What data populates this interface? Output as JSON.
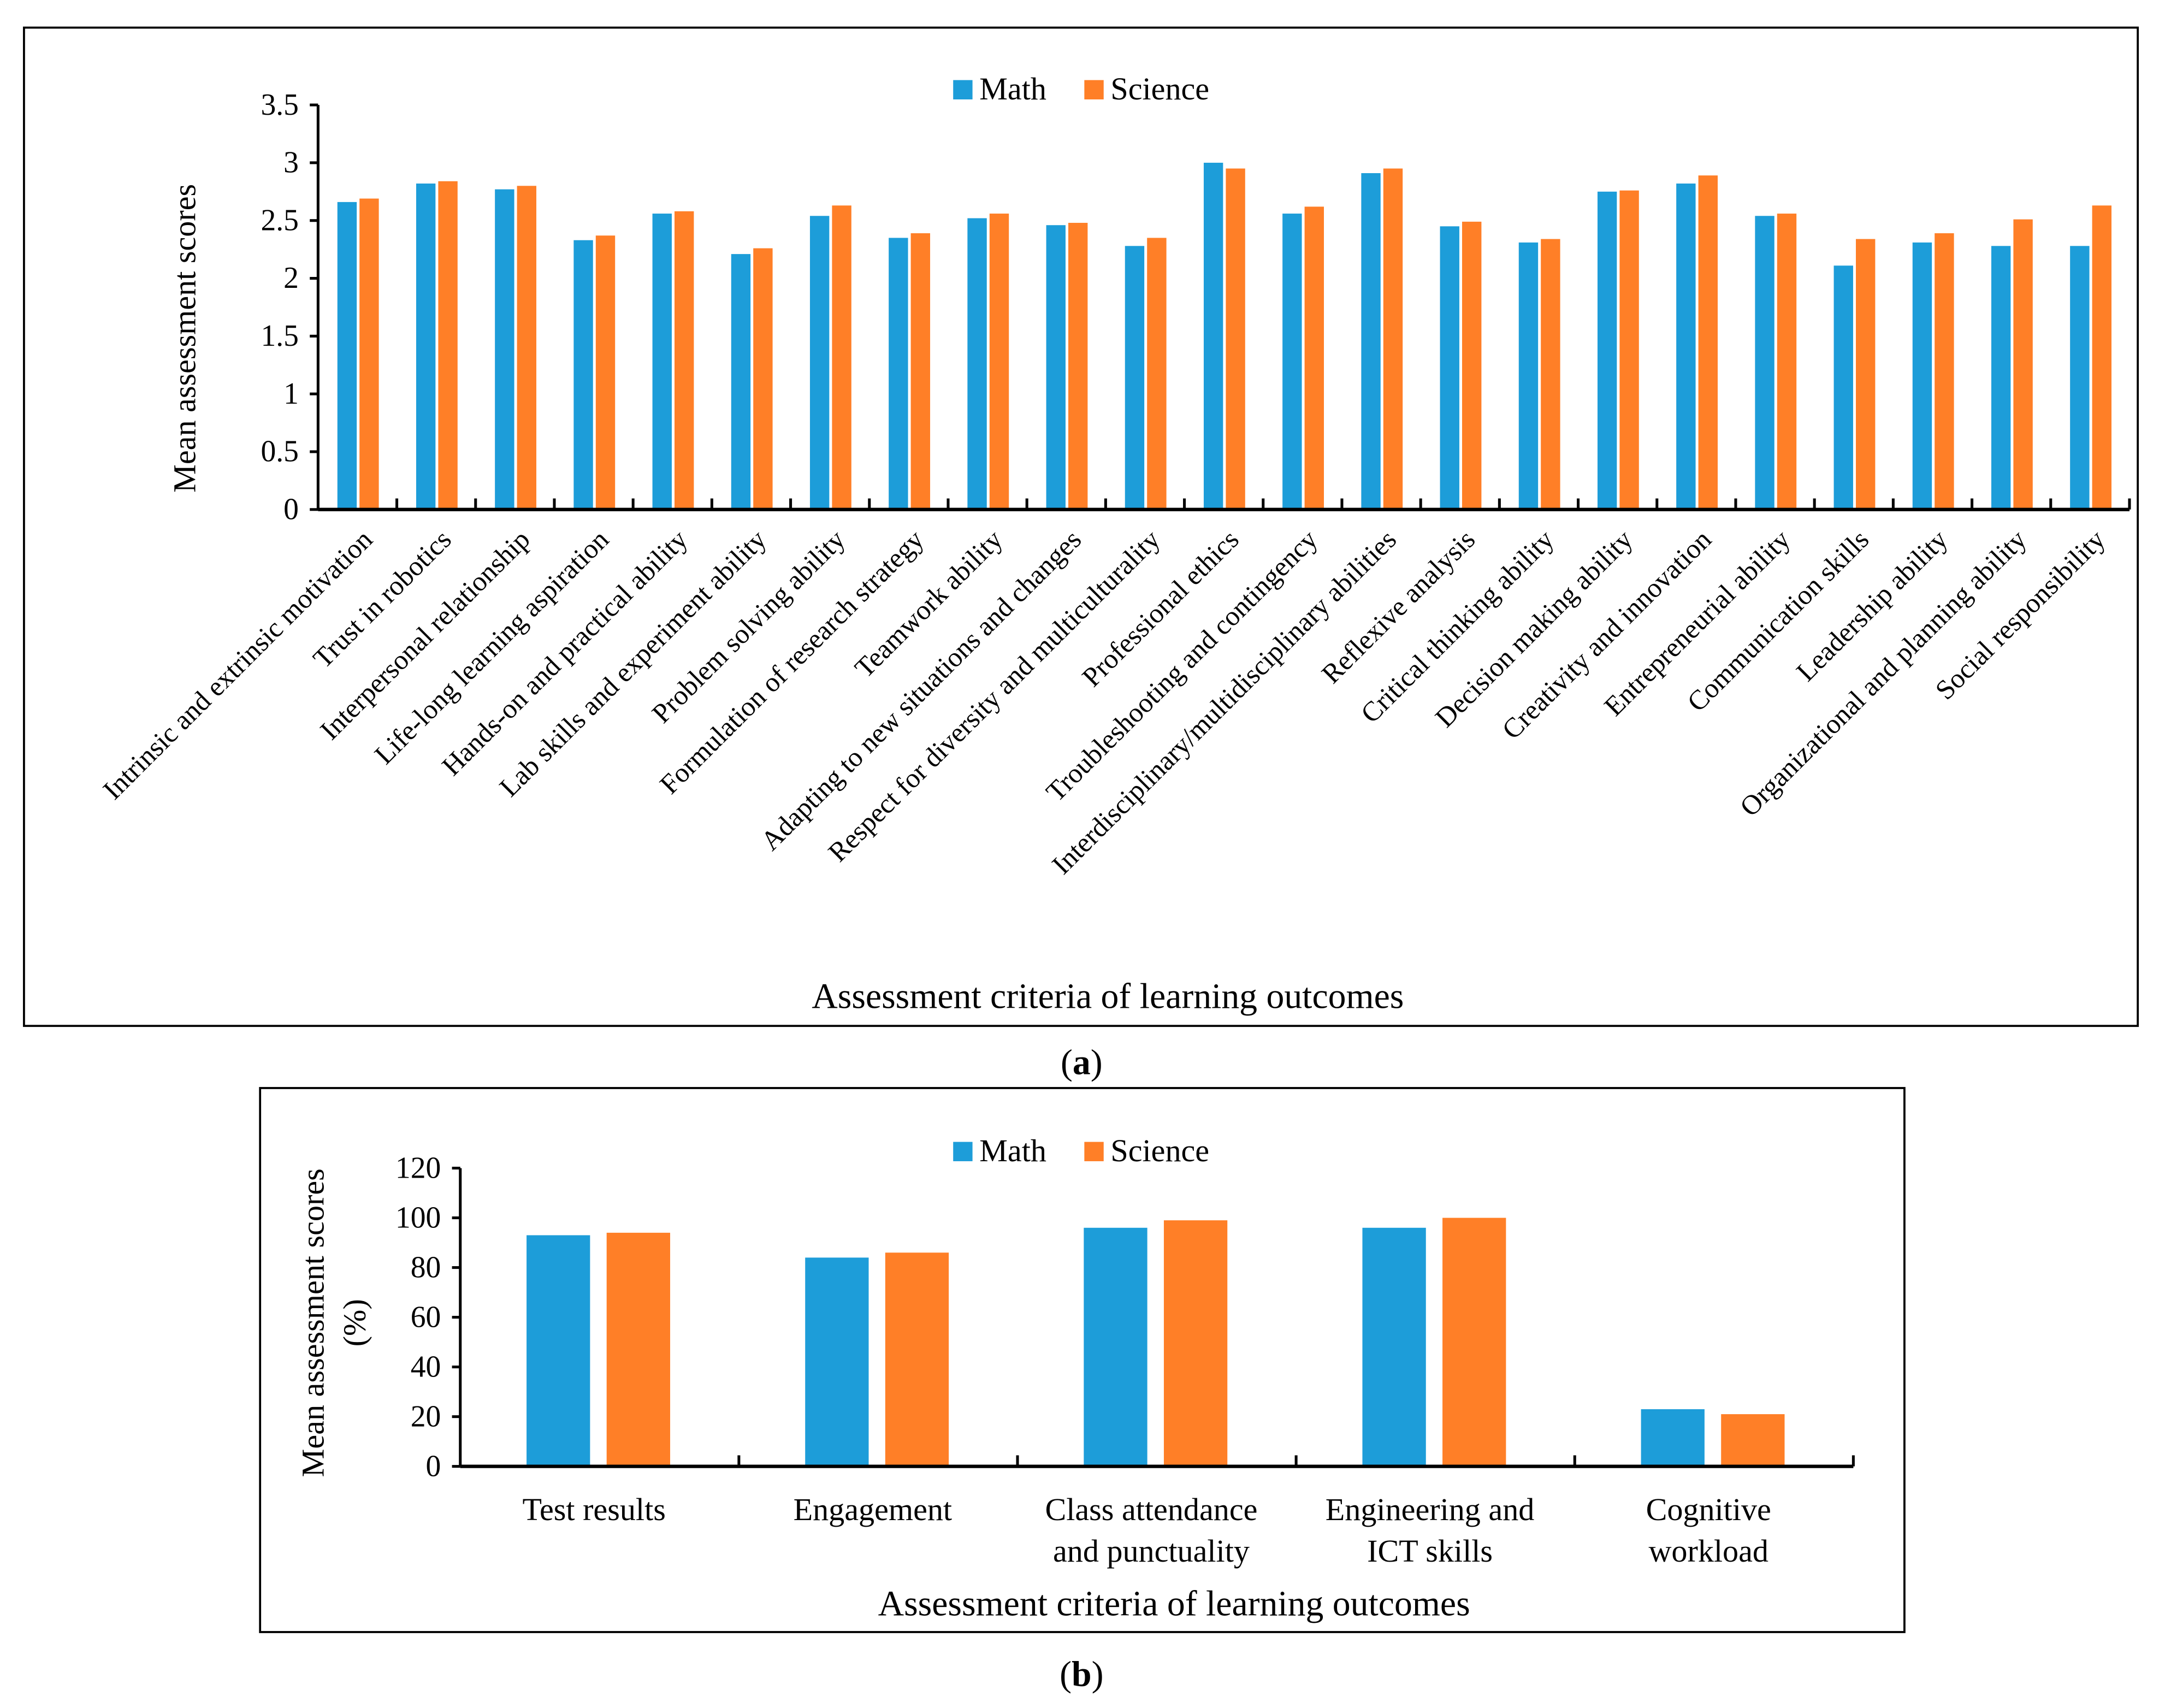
{
  "colors": {
    "math": "#1d9dd9",
    "science": "#ff7f27"
  },
  "chart_data": [
    {
      "type": "bar",
      "panel": "(a)",
      "panel_letter": "a",
      "xlabel": "Assessment criteria of learning outcomes",
      "ylabel": "Mean assessment scores",
      "ylim": [
        0,
        3.5
      ],
      "yticks": [
        "0",
        "0.5",
        "1",
        "1.5",
        "2",
        "2.5",
        "3",
        "3.5"
      ],
      "legend": "top-center",
      "categories": [
        "Intrinsic and extrinsic motivation",
        "Trust in robotics",
        "Interpersonal relationship",
        "Life-long learning aspiration",
        "Hands-on and practical ability",
        "Lab skills and experiment ability",
        "Problem solving ability",
        "Formulation of research strategy",
        "Teamwork ability",
        "Adapting to new situations and changes",
        "Respect for diversity and multiculturality",
        "Professional ethics",
        "Troubleshooting and contingency",
        "Interdisciplinary/multidisciplinary abilities",
        "Reflexive analysis",
        "Critical thinking ability",
        "Decision making ability",
        "Creativity and innovation",
        "Entrepreneurial ability",
        "Communication skills",
        "Leadership ability",
        "Organizational and planning ability",
        "Social responsibility"
      ],
      "series": [
        {
          "name": "Math",
          "values": [
            2.66,
            2.82,
            2.77,
            2.33,
            2.56,
            2.21,
            2.54,
            2.35,
            2.52,
            2.46,
            2.28,
            3.0,
            2.56,
            2.91,
            2.45,
            2.31,
            2.75,
            2.82,
            2.54,
            2.11,
            2.31,
            2.28,
            2.28
          ]
        },
        {
          "name": "Science",
          "values": [
            2.69,
            2.84,
            2.8,
            2.37,
            2.58,
            2.26,
            2.63,
            2.39,
            2.56,
            2.48,
            2.35,
            2.95,
            2.62,
            2.95,
            2.49,
            2.34,
            2.76,
            2.89,
            2.56,
            2.34,
            2.39,
            2.51,
            2.63
          ]
        }
      ]
    },
    {
      "type": "bar",
      "panel": "(b)",
      "panel_letter": "b",
      "xlabel": "Assessment criteria of learning outcomes",
      "ylabel": "Mean assessment scores",
      "ylabel2": "(%)",
      "ylim": [
        0,
        120
      ],
      "yticks": [
        "0",
        "20",
        "40",
        "60",
        "80",
        "100",
        "120"
      ],
      "legend": "top-center",
      "categories": [
        [
          "Test results"
        ],
        [
          "Engagement"
        ],
        [
          "Class attendance",
          "and punctuality"
        ],
        [
          "Engineering and",
          "ICT skills"
        ],
        [
          "Cognitive",
          "workload"
        ]
      ],
      "series": [
        {
          "name": "Math",
          "values": [
            93,
            84,
            96,
            96,
            23
          ]
        },
        {
          "name": "Science",
          "values": [
            94,
            86,
            99,
            100,
            21
          ]
        }
      ]
    }
  ]
}
